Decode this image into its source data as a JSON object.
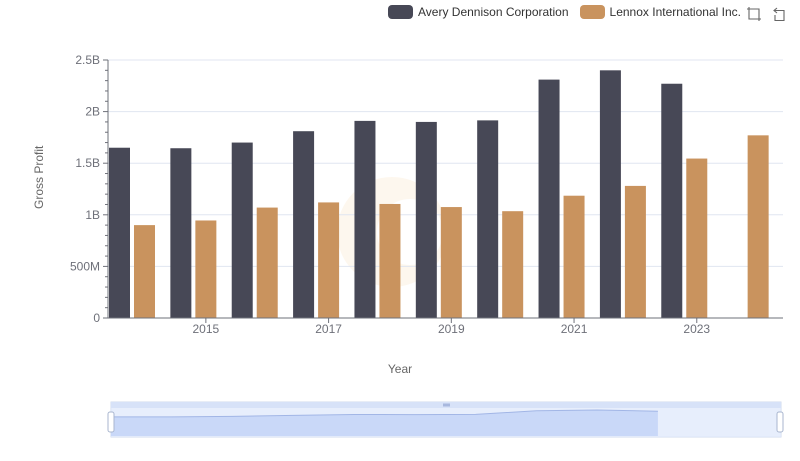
{
  "legend": {
    "items": [
      {
        "label": "Avery Dennison Corporation",
        "color": "#474856"
      },
      {
        "label": "Lennox International Inc.",
        "color": "#c9935e"
      }
    ]
  },
  "toolbox": {
    "icons": [
      "zoom-icon",
      "zoom-reset-icon"
    ]
  },
  "chart_data": {
    "type": "bar",
    "xlabel": "Year",
    "ylabel": "Gross Profit",
    "categories": [
      "2014",
      "2015",
      "2016",
      "2017",
      "2018",
      "2019",
      "2020",
      "2021",
      "2022",
      "2023",
      "2024"
    ],
    "x_tick_labels": [
      "2015",
      "2017",
      "2019",
      "2021",
      "2023"
    ],
    "y_ticks": [
      {
        "value": 0,
        "label": "0"
      },
      {
        "value": 500000000,
        "label": "500M"
      },
      {
        "value": 1000000000,
        "label": "1B"
      },
      {
        "value": 1500000000,
        "label": "1.5B"
      },
      {
        "value": 2000000000,
        "label": "2B"
      },
      {
        "value": 2500000000,
        "label": "2.5B"
      }
    ],
    "ylim": [
      0,
      2500000000
    ],
    "grid": true,
    "legend_position": "top-right",
    "series": [
      {
        "name": "Avery Dennison Corporation",
        "color": "#474856",
        "values": [
          1650000000,
          1645000000,
          1700000000,
          1810000000,
          1910000000,
          1900000000,
          1915000000,
          2310000000,
          2400000000,
          2270000000,
          null
        ]
      },
      {
        "name": "Lennox International Inc.",
        "color": "#c9935e",
        "values": [
          900000000,
          945000000,
          1070000000,
          1120000000,
          1105000000,
          1075000000,
          1035000000,
          1185000000,
          1280000000,
          1545000000,
          1770000000
        ]
      }
    ]
  }
}
